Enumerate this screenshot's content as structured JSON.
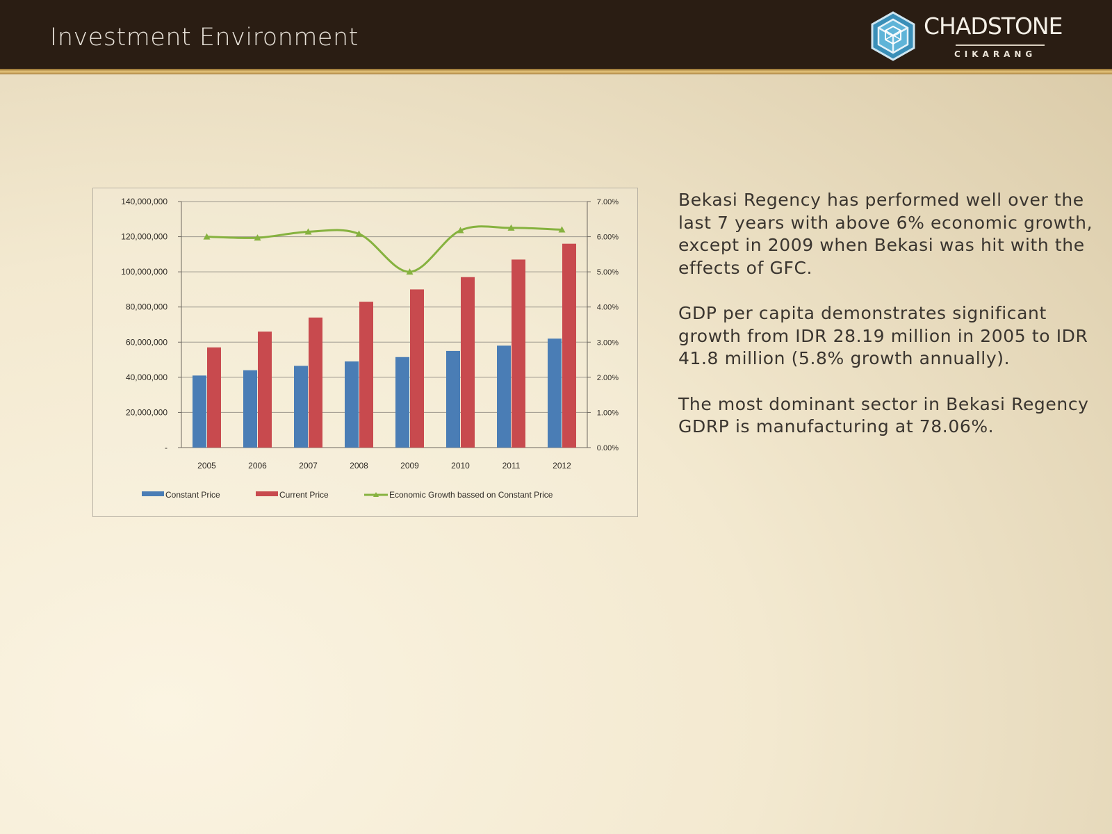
{
  "header": {
    "title": "Investment Environment",
    "logo": {
      "name": "CHADSTONE",
      "sub": "CIKARANG",
      "icon": "cube-icon"
    }
  },
  "colors": {
    "header_bg": "#2a1d13",
    "gold": "#d8b56a",
    "constant_price": "#4a7db5",
    "current_price": "#c84a4e",
    "growth_line": "#86b23f",
    "text": "#3a352f"
  },
  "chart_data": {
    "type": "bar",
    "categories": [
      "2005",
      "2006",
      "2007",
      "2008",
      "2009",
      "2010",
      "2011",
      "2012"
    ],
    "series": [
      {
        "name": "Constant Price",
        "type": "bar",
        "axis": "left",
        "values": [
          41000000,
          44000000,
          46500000,
          49000000,
          51500000,
          55000000,
          58000000,
          62000000
        ]
      },
      {
        "name": "Current Price",
        "type": "bar",
        "axis": "left",
        "values": [
          57000000,
          66000000,
          74000000,
          83000000,
          90000000,
          97000000,
          107000000,
          116000000
        ]
      },
      {
        "name": "Economic Growth bassed on Constant Price",
        "type": "line",
        "axis": "right",
        "values": [
          0.06,
          0.0597,
          0.0614,
          0.0608,
          0.05,
          0.0618,
          0.0625,
          0.062
        ]
      }
    ],
    "ylim": [
      0,
      140000000
    ],
    "y2lim": [
      0,
      0.07
    ],
    "yticks": [
      "-",
      "20,000,000",
      "40,000,000",
      "60,000,000",
      "80,000,000",
      "100,000,000",
      "120,000,000",
      "140,000,000"
    ],
    "y2ticks": [
      "0.00%",
      "1.00%",
      "2.00%",
      "3.00%",
      "4.00%",
      "5.00%",
      "6.00%",
      "7.00%"
    ],
    "grid": true,
    "legend": "bottom"
  },
  "text": {
    "p1": "Bekasi Regency has performed well over the last 7 years with above 6% economic growth, except in 2009 when Bekasi was hit with the effects of GFC.",
    "p2": "GDP per capita demonstrates significant growth from IDR 28.19 million in 2005 to IDR 41.8 million (5.8% growth annually).",
    "p3": "The most dominant sector in Bekasi Regency GDRP is manufacturing at 78.06%."
  }
}
